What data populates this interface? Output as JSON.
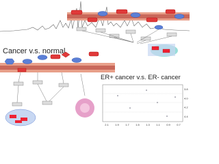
{
  "labels": {
    "comparison_1": "Cancer v.s. normal",
    "comparison_2": "ER+ cancer v.s. ER- cancer"
  },
  "nmr_plot": {
    "xticks": [
      "2.1",
      "1.9",
      "1.7",
      "1.5",
      "1.3",
      "1.1",
      "0.9",
      "0.7"
    ],
    "yticks": [
      "3.8",
      "4.0",
      "4.2",
      "4.4"
    ]
  }
}
